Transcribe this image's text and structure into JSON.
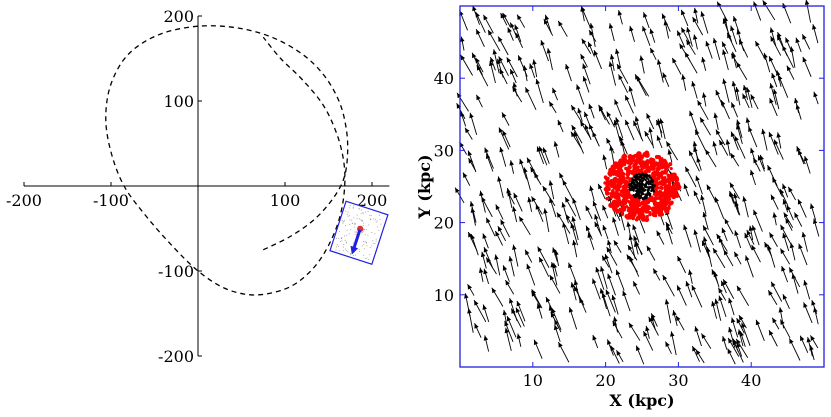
{
  "chart_data": [
    {
      "type": "line",
      "title": "",
      "xlabel": "",
      "ylabel": "",
      "xlim": [
        -200,
        220
      ],
      "ylim": [
        -200,
        200
      ],
      "spines": "centered",
      "x_ticks": [
        -200,
        -100,
        100,
        200
      ],
      "y_ticks": [
        -200,
        -100,
        100,
        200
      ],
      "x_tick_labels": [
        "-200",
        "-100",
        "100",
        "200"
      ],
      "y_tick_labels": [
        "-200",
        "-100",
        "100",
        "200"
      ],
      "series": [
        {
          "style": "dashed",
          "color": "#000000",
          "x": [
            75,
            105,
            133,
            155,
            168,
            172,
            170,
            162,
            145,
            120,
            85,
            45,
            0,
            -45,
            -80,
            -100,
            -106,
            -100,
            -85,
            -60,
            -30,
            0,
            30,
            60,
            88,
            112,
            134,
            150,
            162,
            168,
            168,
            160,
            144,
            120,
            95,
            75
          ],
          "y": [
            -75,
            -60,
            -40,
            -15,
            10,
            40,
            70,
            100,
            130,
            155,
            175,
            186,
            188,
            178,
            155,
            120,
            80,
            40,
            0,
            -35,
            -70,
            -100,
            -120,
            -128,
            -125,
            -115,
            -95,
            -70,
            -40,
            -8,
            25,
            60,
            95,
            125,
            150,
            175
          ]
        }
      ],
      "inset": {
        "box_color": "#2020e0",
        "center": [
          185,
          -55
        ],
        "marker_color": "#e03030",
        "arrow_color": "#2020e0"
      }
    },
    {
      "type": "scatter",
      "subtype": "quiver",
      "title": "",
      "xlabel": "X (kpc)",
      "ylabel": "Y (kpc)",
      "xlim": [
        0,
        50
      ],
      "ylim": [
        0,
        50
      ],
      "x_ticks": [
        10,
        20,
        30,
        40
      ],
      "y_ticks": [
        10,
        20,
        30,
        40
      ],
      "x_tick_labels": [
        "10",
        "20",
        "30",
        "40"
      ],
      "y_tick_labels": [
        "10",
        "20",
        "30",
        "40"
      ],
      "frame_color": "#2020e0",
      "arrow_color": "#000000",
      "arrow_direction": "up-left",
      "cluster": {
        "center": [
          25,
          25
        ],
        "core_color": "#000000",
        "halo_color": "#ff0000"
      }
    }
  ]
}
